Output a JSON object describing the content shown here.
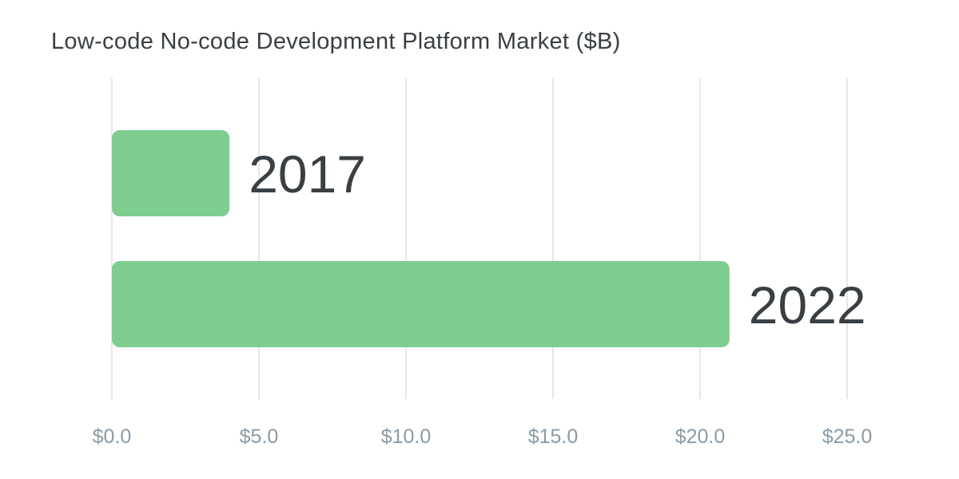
{
  "chart_data": {
    "type": "bar",
    "orientation": "horizontal",
    "title": "Low-code No-code Development Platform Market ($B)",
    "xlabel": "",
    "ylabel": "",
    "categories": [
      "2017",
      "2022"
    ],
    "values": [
      4.0,
      21.0
    ],
    "xlim": [
      0,
      25
    ],
    "x_ticks": [
      0,
      5,
      10,
      15,
      20,
      25
    ],
    "x_tick_labels": [
      "$0.0",
      "$5.0",
      "$10.0",
      "$15.0",
      "$20.0",
      "$25.0"
    ],
    "grid": "vertical",
    "legend": "none",
    "category_label_position": "end-of-bar",
    "colors": {
      "bar": "#7dcd8f",
      "category_label": "#3a3f44",
      "tick_label": "#8a9aa6",
      "grid": "#dddddd",
      "title": "#3a3f44"
    }
  }
}
